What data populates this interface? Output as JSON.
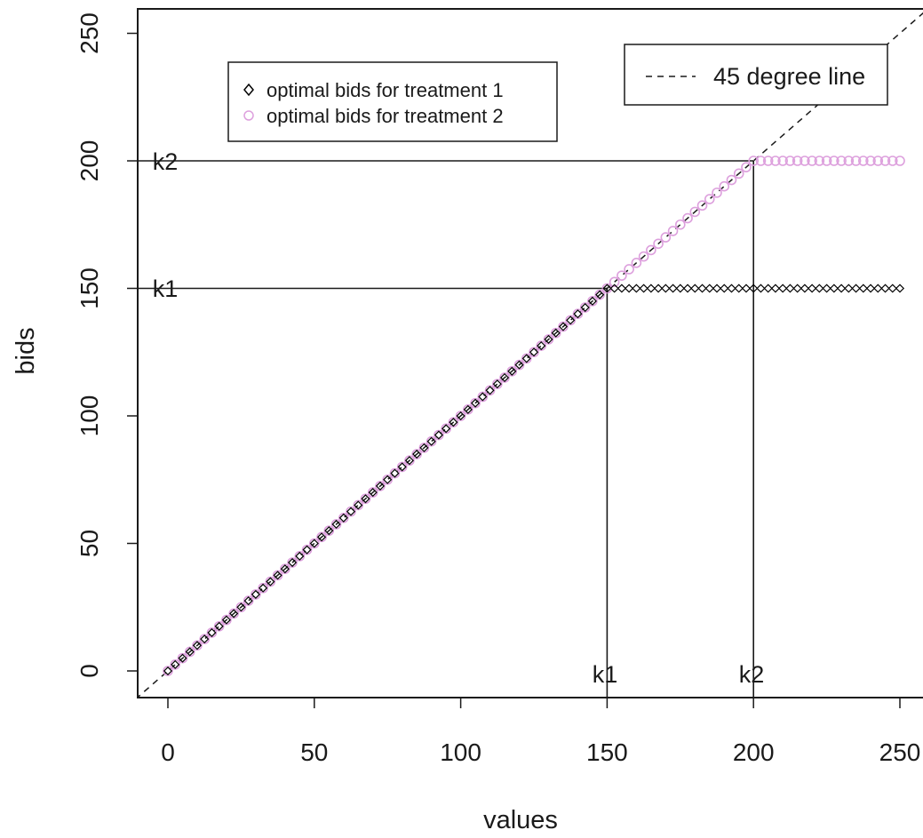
{
  "chart_data": {
    "type": "scatter",
    "xlabel": "values",
    "ylabel": "bids",
    "xlim": [
      -10,
      255
    ],
    "ylim": [
      -10,
      260
    ],
    "x_ticks": [
      "0",
      "50",
      "100",
      "150",
      "200",
      "250"
    ],
    "y_ticks": [
      "0",
      "50",
      "100",
      "150",
      "200",
      "250"
    ],
    "series": [
      {
        "name": "optimal bids for treatment 1",
        "marker": "diamond",
        "color": "#000000",
        "rule": "bid = min(value, 150)",
        "x_from": 0,
        "x_to": 250,
        "x_step": 2.5,
        "cap": 150
      },
      {
        "name": "optimal bids for treatment 2",
        "marker": "circle",
        "color": "#dda0dd",
        "rule": "bid = min(value, 200)",
        "x_from": 0,
        "x_to": 250,
        "x_step": 2.5,
        "cap": 200
      }
    ],
    "reference_line": {
      "name": "45 degree line",
      "style": "dashed",
      "slope": 1,
      "intercept": 0
    },
    "guides": [
      {
        "label": "k1",
        "value": 150
      },
      {
        "label": "k2",
        "value": 200
      }
    ],
    "legends": [
      {
        "position": "top-left",
        "entries": [
          "optimal bids for treatment 1",
          "optimal bids for treatment 2"
        ]
      },
      {
        "position": "top-right",
        "entries": [
          "45 degree line"
        ]
      }
    ],
    "grid": false
  }
}
